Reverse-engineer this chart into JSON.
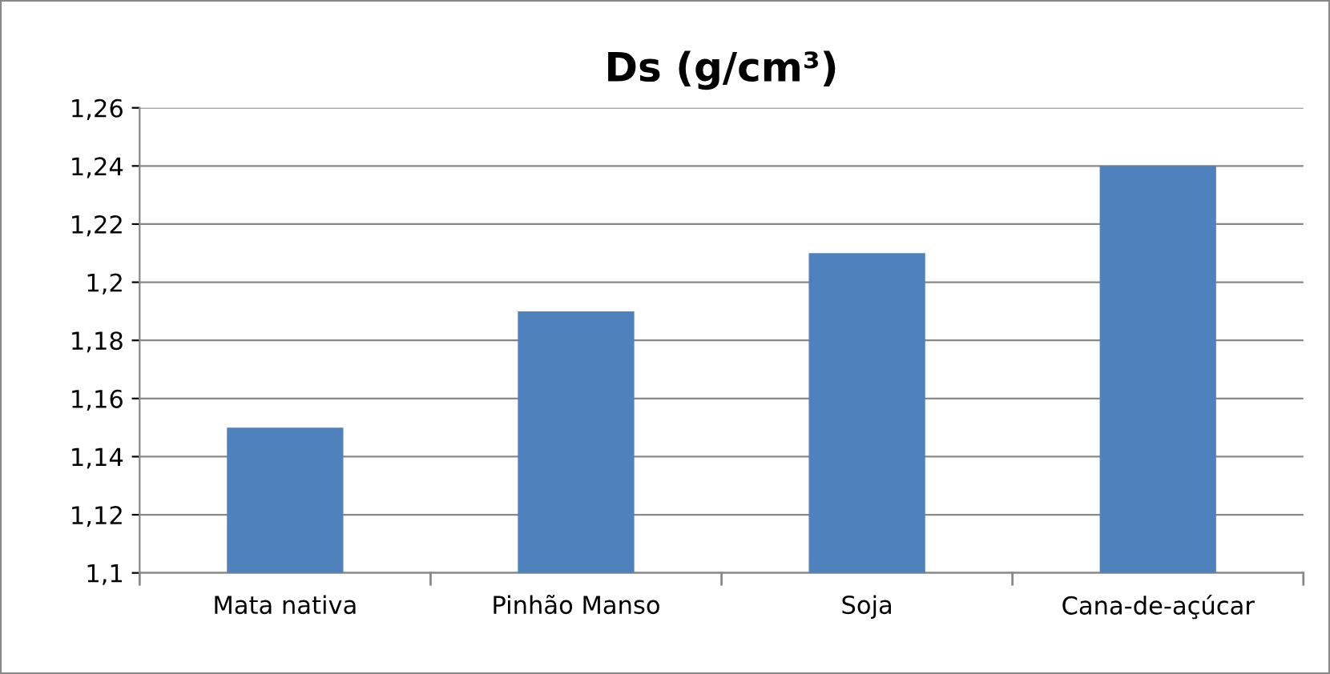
{
  "chart_data": {
    "type": "bar",
    "title": "Ds (g/cm³)",
    "categories": [
      "Mata nativa",
      "Pinhão Manso",
      "Soja",
      "Cana-de-açúcar"
    ],
    "values": [
      1.15,
      1.19,
      1.21,
      1.24
    ],
    "color": "#4f81bd",
    "ylim": [
      1.1,
      1.26
    ],
    "yticks": [
      {
        "value": 1.1,
        "label": "1,1"
      },
      {
        "value": 1.12,
        "label": "1,12"
      },
      {
        "value": 1.14,
        "label": "1,14"
      },
      {
        "value": 1.16,
        "label": "1,16"
      },
      {
        "value": 1.18,
        "label": "1,18"
      },
      {
        "value": 1.2,
        "label": "1,2"
      },
      {
        "value": 1.22,
        "label": "1,22"
      },
      {
        "value": 1.24,
        "label": "1,24"
      },
      {
        "value": 1.26,
        "label": "1,26"
      }
    ],
    "grid": "y",
    "legend": false
  }
}
